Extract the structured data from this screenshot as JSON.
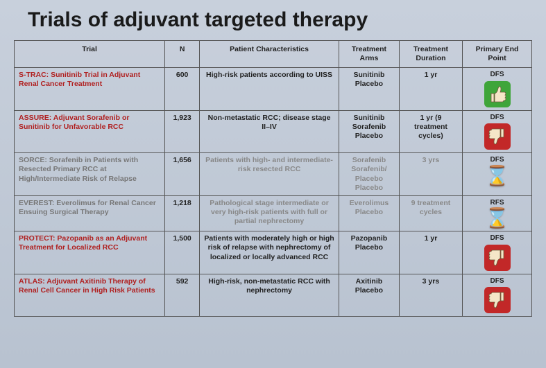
{
  "title": "Trials of adjuvant targeted therapy",
  "columns": {
    "trial": "Trial",
    "n": "N",
    "characteristics": "Patient Characteristics",
    "arms": "Treatment Arms",
    "duration": "Treatment Duration",
    "endpoint": "Primary End Point"
  },
  "rows": [
    {
      "trial": "S-TRAC: Sunitinib Trial in Adjuvant Renal Cancer Treatment",
      "trial_color": "red",
      "n": "600",
      "characteristics": "High-risk patients according to UISS",
      "arms": [
        "Sunitinib",
        "Placebo"
      ],
      "duration": "1 yr",
      "endpoint_label": "DFS",
      "endpoint_icon": "thumbs-up",
      "faded": false
    },
    {
      "trial": "ASSURE: Adjuvant Sorafenib or Sunitinib for Unfavorable RCC",
      "trial_color": "red",
      "n": "1,923",
      "characteristics": "Non-metastatic RCC; disease stage II–IV",
      "arms": [
        "Sunitinib",
        "Sorafenib",
        "Placebo"
      ],
      "duration": "1 yr (9 treatment cycles)",
      "endpoint_label": "DFS",
      "endpoint_icon": "thumbs-down",
      "faded": false
    },
    {
      "trial": "SORCE: Sorafenib in Patients with Resected Primary RCC at High/Intermediate Risk of Relapse",
      "trial_color": "grey",
      "n": "1,656",
      "characteristics": "Patients with high- and intermediate-risk resected RCC",
      "arms": [
        "Sorafenib",
        "Sorafenib/ Placebo",
        "Placebo"
      ],
      "duration": "3 yrs",
      "endpoint_label": "DFS",
      "endpoint_icon": "hourglass",
      "faded": true
    },
    {
      "trial": "EVEREST: Everolimus for Renal Cancer Ensuing Surgical Therapy",
      "trial_color": "grey",
      "n": "1,218",
      "characteristics": "Pathological stage intermediate or very high-risk patients with full or partial nephrectomy",
      "arms": [
        "Everolimus",
        "Placebo"
      ],
      "duration": "9 treatment cycles",
      "endpoint_label": "RFS",
      "endpoint_icon": "hourglass",
      "faded": true
    },
    {
      "trial": "PROTECT: Pazopanib as an Adjuvant Treatment for Localized RCC",
      "trial_color": "red",
      "n": "1,500",
      "characteristics": "Patients with moderately high or high risk of relapse with nephrectomy of localized or locally advanced RCC",
      "arms": [
        "Pazopanib",
        "Placebo"
      ],
      "duration": "1 yr",
      "endpoint_label": "DFS",
      "endpoint_icon": "thumbs-down",
      "faded": false
    },
    {
      "trial": "ATLAS: Adjuvant Axitinib Therapy of Renal Cell Cancer in High Risk Patients",
      "trial_color": "red",
      "n": "592",
      "characteristics": "High-risk, non-metastatic RCC with nephrectomy",
      "arms": [
        "Axitinib",
        "Placebo"
      ],
      "duration": "3 yrs",
      "endpoint_label": "DFS",
      "endpoint_icon": "thumbs-down",
      "faded": false
    }
  ],
  "icon_colors": {
    "thumbs_up_bg": "#3fa53a",
    "thumbs_down_bg": "#c22828",
    "thumb_fill": "#f5e6c8",
    "hourglass_color": "#a88a5a"
  }
}
